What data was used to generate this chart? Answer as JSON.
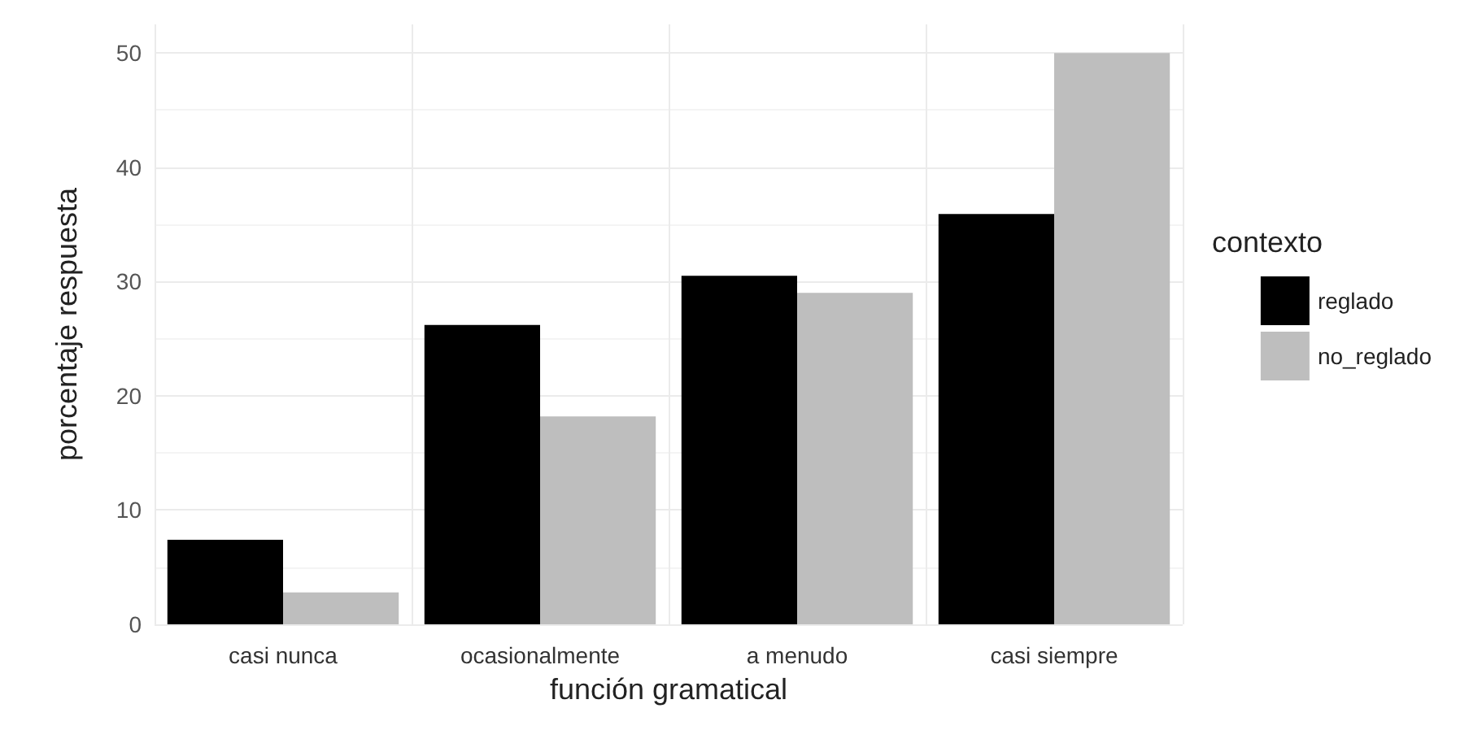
{
  "chart_data": {
    "type": "bar",
    "xlabel": "función gramatical",
    "ylabel": "porcentaje respuesta",
    "legend_title": "contexto",
    "categories": [
      "casi nunca",
      "ocasionalmente",
      "a menudo",
      "casi siempre"
    ],
    "series": [
      {
        "name": "reglado",
        "color": "#000000",
        "values": [
          7.4,
          26.2,
          30.5,
          35.9
        ]
      },
      {
        "name": "no_reglado",
        "color": "#bebebe",
        "values": [
          2.8,
          18.2,
          29.0,
          50.0
        ]
      }
    ],
    "ylim": [
      0,
      52.5
    ],
    "yticks": [
      0,
      10,
      20,
      30,
      40,
      50
    ],
    "grid": true,
    "legend": "right"
  }
}
